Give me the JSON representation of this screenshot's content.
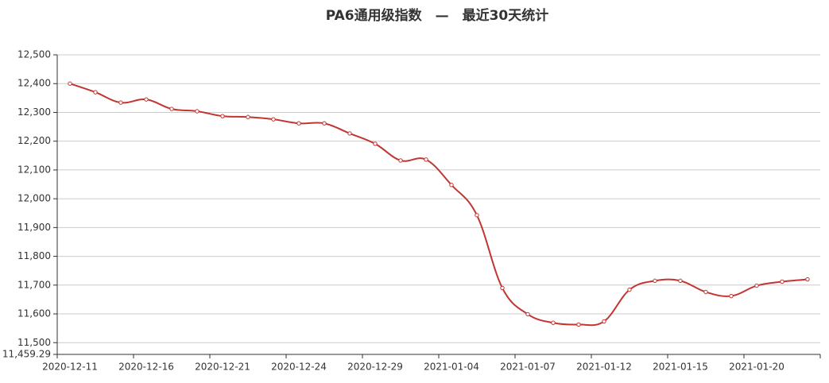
{
  "chart_data": {
    "type": "line",
    "title": "PA6通用级指数　—　最近30天统计",
    "categories": [
      "2020-12-11",
      null,
      null,
      "2020-12-16",
      null,
      null,
      "2020-12-21",
      null,
      null,
      "2020-12-24",
      null,
      null,
      "2020-12-29",
      null,
      null,
      "2021-01-04",
      null,
      null,
      "2021-01-07",
      null,
      null,
      "2021-01-12",
      null,
      null,
      "2021-01-15",
      null,
      null,
      "2021-01-20",
      null,
      null
    ],
    "series": [
      {
        "name": "PA6",
        "color": "#c23531",
        "values": [
          12400,
          12370,
          12334,
          12345,
          12312,
          12304,
          12287,
          12284,
          12276,
          12262,
          12262,
          12227,
          12191,
          12133,
          12136,
          12048,
          11943,
          11690,
          11599,
          11569,
          11563,
          11574,
          11684,
          11715,
          11715,
          11676,
          11662,
          11698,
          11712,
          11720
        ]
      }
    ],
    "ylim": [
      11459.29,
      12500
    ],
    "yticks": [
      {
        "value": 11459.29,
        "label": "11,459.29"
      },
      {
        "value": 11500,
        "label": "11,500"
      },
      {
        "value": 11600,
        "label": "11,600"
      },
      {
        "value": 11700,
        "label": "11,700"
      },
      {
        "value": 11800,
        "label": "11,800"
      },
      {
        "value": 11900,
        "label": "11,900"
      },
      {
        "value": 12000,
        "label": "12,000"
      },
      {
        "value": 12100,
        "label": "12,100"
      },
      {
        "value": 12200,
        "label": "12,200"
      },
      {
        "value": 12300,
        "label": "12,300"
      },
      {
        "value": 12400,
        "label": "12,400"
      },
      {
        "value": 12500,
        "label": "12,500"
      }
    ],
    "grid": true
  }
}
